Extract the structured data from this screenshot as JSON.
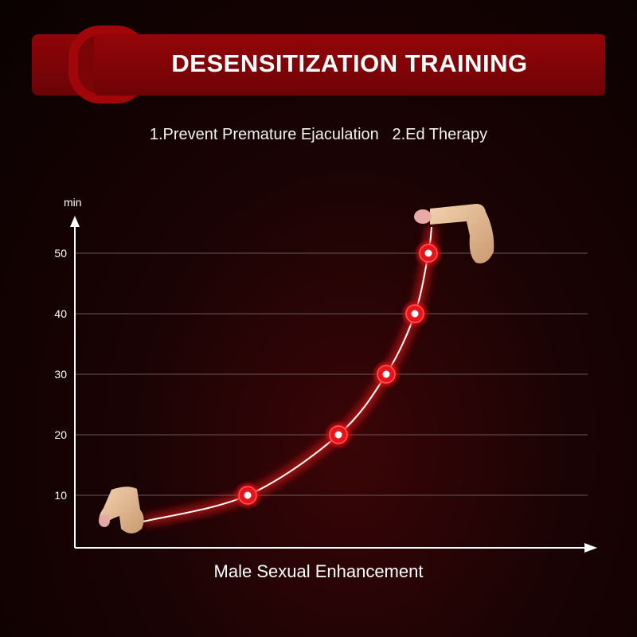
{
  "header": {
    "title": "DESENSITIZATION TRAINING"
  },
  "subtitle": "1.Prevent Premature Ejaculation   2.Ed Therapy",
  "chart_data": {
    "type": "line",
    "title": "",
    "xlabel": "Male Sexual Enhancement",
    "ylabel": "min",
    "ylim": [
      0,
      55
    ],
    "yticks": [
      10,
      20,
      30,
      40,
      50
    ],
    "grid": true,
    "series": [
      {
        "values": [
          10,
          20,
          30,
          40,
          50
        ]
      }
    ],
    "colors": {
      "line": "#ffffff",
      "glow": "#ff1a1a",
      "marker": "#e8141c",
      "grid": "#6a5a5a"
    }
  }
}
